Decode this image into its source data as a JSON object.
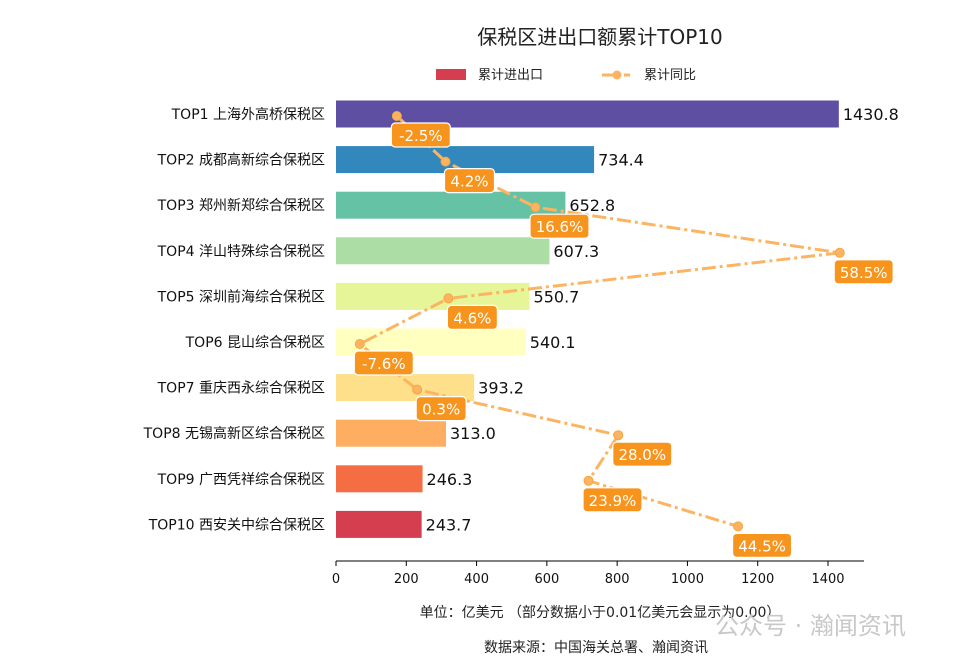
{
  "chart_data": {
    "type": "bar",
    "orientation": "horizontal",
    "title": "保税区进出口额累计TOP10",
    "categories": [
      "TOP1 上海外高桥保税区",
      "TOP2 成都高新综合保税区",
      "TOP3 郑州新郑综合保税区",
      "TOP4 洋山特殊综合保税区",
      "TOP5 深圳前海综合保税区",
      "TOP6 昆山综合保税区",
      "TOP7 重庆西永综合保税区",
      "TOP8 无锡高新区综合保税区",
      "TOP9 广西凭祥综合保税区",
      "TOP10 西安关中综合保税区"
    ],
    "series": [
      {
        "name": "累计进出口",
        "type": "bar",
        "values": [
          1430.8,
          734.4,
          652.8,
          607.3,
          550.7,
          540.1,
          393.2,
          313.0,
          246.3,
          243.7
        ],
        "labels": [
          "1430.8",
          "734.4",
          "652.8",
          "607.3",
          "550.7",
          "540.1",
          "393.2",
          "313.0",
          "246.3",
          "243.7"
        ]
      },
      {
        "name": "累计同比",
        "type": "line",
        "values": [
          -2.5,
          4.2,
          16.6,
          58.5,
          4.6,
          -7.6,
          0.3,
          28.0,
          23.9,
          44.5
        ],
        "labels": [
          "-2.5%",
          "4.2%",
          "16.6%",
          "58.5%",
          "4.6%",
          "-7.6%",
          "0.3%",
          "28.0%",
          "23.9%",
          "44.5%"
        ]
      }
    ],
    "xlim": [
      0,
      1500
    ],
    "xticks": [
      "0",
      "200",
      "400",
      "600",
      "800",
      "1000",
      "1200",
      "1400"
    ],
    "xlabel": "单位：亿美元  （部分数据小于0.01亿美元会显示为0.00）",
    "source": "数据来源：中国海关总署、瀚闻资讯",
    "legend_position": "top",
    "grid": false,
    "colors": {
      "bars": [
        "#5e4fa2",
        "#3288bd",
        "#66c2a5",
        "#abdda4",
        "#e6f598",
        "#ffffbf",
        "#fee08b",
        "#fdae61",
        "#f46d43",
        "#d53e4f"
      ],
      "line": "#fdb462",
      "label_box": "#f7941d",
      "legend_bar": "#d53e4f"
    }
  },
  "watermark": "公众号 · 瀚闻资讯"
}
